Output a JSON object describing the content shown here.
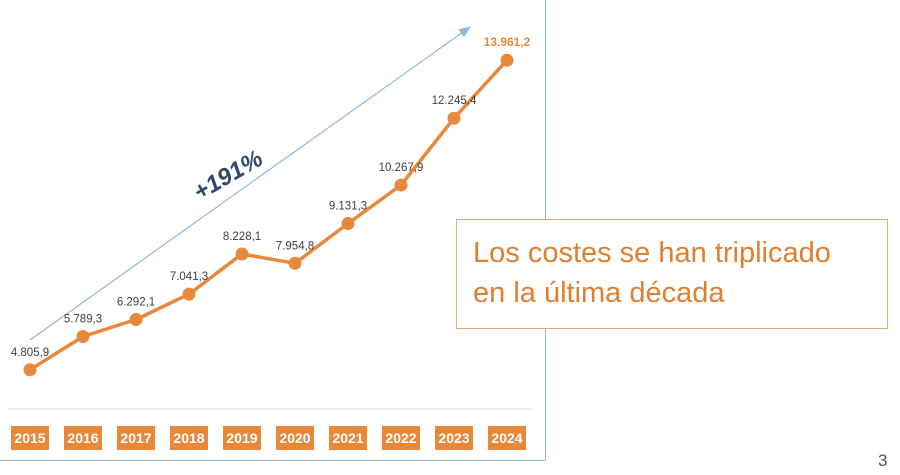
{
  "chart_data": {
    "type": "line",
    "categories": [
      "2015",
      "2016",
      "2017",
      "2018",
      "2019",
      "2020",
      "2021",
      "2022",
      "2023",
      "2024"
    ],
    "values": [
      4805.9,
      5789.3,
      6292.1,
      7041.3,
      8228.1,
      7954.8,
      9131.3,
      10267.9,
      12245.4,
      13961.2
    ],
    "data_labels": [
      "4.805,9",
      "5.789,3",
      "6.292,1",
      "7.041,3",
      "8.228,1",
      "7.954,8",
      "9.131,3",
      "10.267,9",
      "12.245,4",
      "13.961,2"
    ],
    "annotation": "+191%",
    "ylim": [
      4000,
      14500
    ],
    "grid": false,
    "legend": "none",
    "colors": {
      "line": "#e8883a",
      "category_bg": "#e8883a",
      "category_text": "#ffffff",
      "trend_arrow": "#8fb8df",
      "annotation": "#2f4a6b",
      "last_label": "#e8883a",
      "label": "#404040"
    }
  },
  "callout": {
    "line1": "Los costes se han triplicado",
    "line2": "en la última década"
  },
  "page_number": "3"
}
